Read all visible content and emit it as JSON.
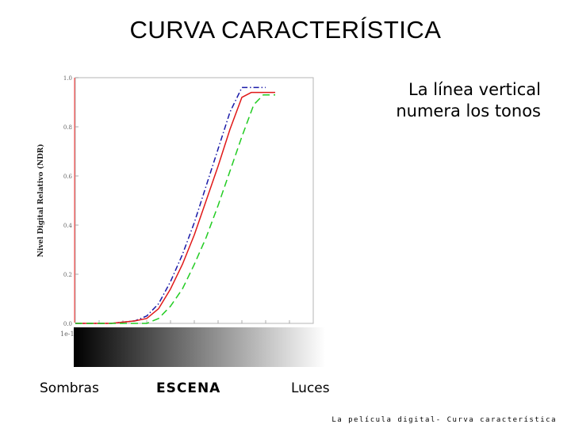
{
  "slide": {
    "title": "CURVA CARACTERÍSTICA",
    "note": "La línea vertical numera los tonos",
    "labels": {
      "left": "Sombras",
      "center": "ESCENA",
      "right": "Luces"
    },
    "footer": "La película digital- Curva característica"
  },
  "chart_data": {
    "type": "line",
    "title": "",
    "xlabel": "",
    "ylabel": "Nivel Digital Relativo (NDR)",
    "x_tick_label_first": "1e-1",
    "yticks": [
      "0.0",
      "0.2",
      "0.4",
      "0.6",
      "0.8",
      "1.0"
    ],
    "ylim": [
      0,
      1
    ],
    "xlim": [
      0,
      1
    ],
    "grid": false,
    "series": [
      {
        "style": "dash-dot",
        "color": "#1a1aa8",
        "x": [
          0,
          0.15,
          0.25,
          0.3,
          0.35,
          0.4,
          0.45,
          0.5,
          0.55,
          0.6,
          0.65,
          0.7,
          0.72,
          0.8
        ],
        "y": [
          0,
          0.0,
          0.01,
          0.03,
          0.08,
          0.17,
          0.28,
          0.41,
          0.56,
          0.71,
          0.86,
          0.96,
          0.96,
          0.96
        ]
      },
      {
        "style": "solid",
        "color": "#e01818",
        "x": [
          0,
          0.15,
          0.25,
          0.3,
          0.35,
          0.4,
          0.45,
          0.5,
          0.55,
          0.6,
          0.65,
          0.7,
          0.74,
          0.84
        ],
        "y": [
          0,
          0.0,
          0.01,
          0.02,
          0.06,
          0.14,
          0.24,
          0.36,
          0.5,
          0.64,
          0.79,
          0.92,
          0.94,
          0.94
        ]
      },
      {
        "style": "dashed",
        "color": "#22cc22",
        "x": [
          0,
          0.15,
          0.25,
          0.3,
          0.35,
          0.4,
          0.45,
          0.5,
          0.55,
          0.6,
          0.65,
          0.7,
          0.75,
          0.79,
          0.84
        ],
        "y": [
          0,
          0.0,
          0.0,
          0.0,
          0.02,
          0.07,
          0.14,
          0.24,
          0.35,
          0.48,
          0.62,
          0.76,
          0.89,
          0.93,
          0.93
        ]
      }
    ],
    "gradient_bar": {
      "from_color": "#000000",
      "to_color": "#ffffff"
    }
  }
}
